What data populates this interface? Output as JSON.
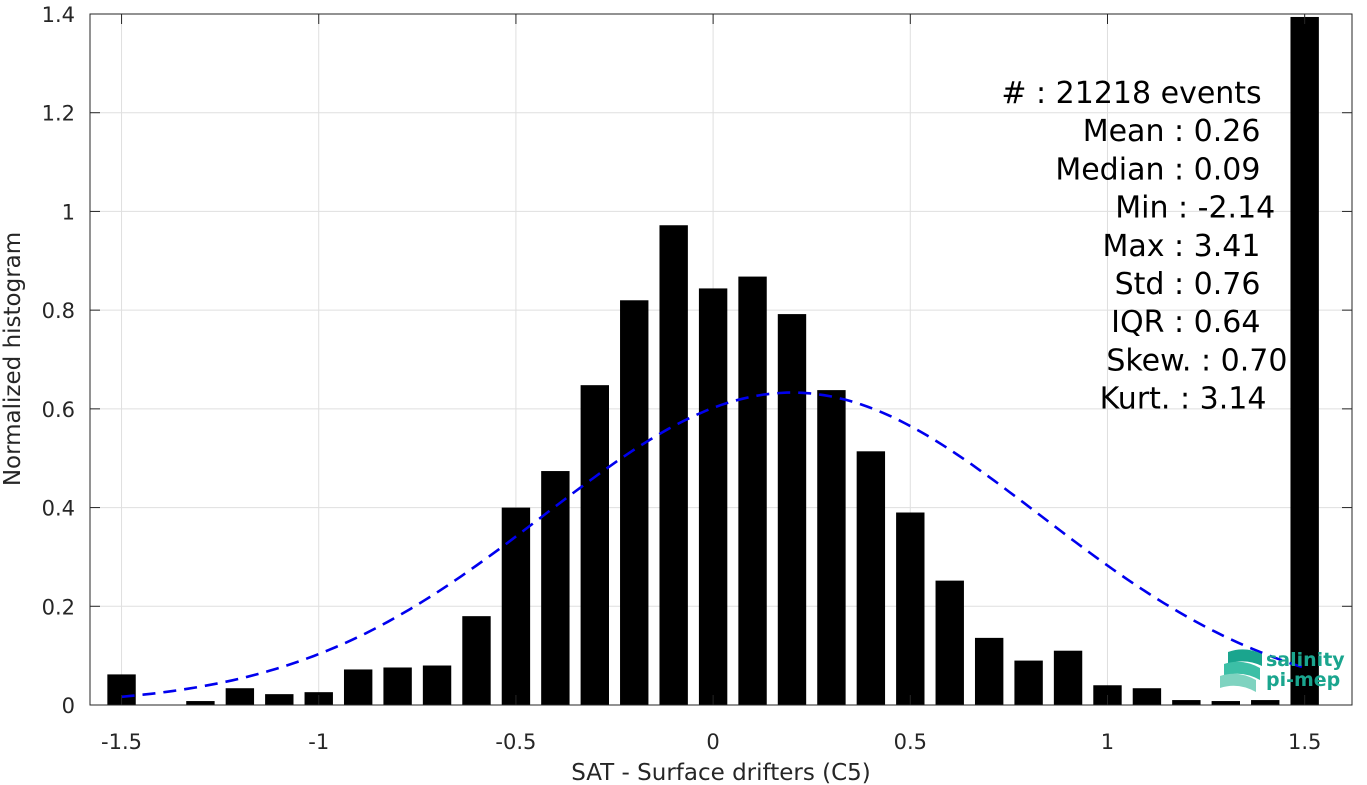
{
  "chart_data": {
    "type": "bar",
    "xlabel": "SAT - Surface drifters (C5)",
    "ylabel": "Normalized histogram",
    "xlim": [
      -1.58,
      1.62
    ],
    "ylim": [
      0,
      1.4
    ],
    "grid": true,
    "bar_color": "#000000",
    "x_ticks": [
      -1.5,
      -1,
      -0.5,
      0,
      0.5,
      1,
      1.5
    ],
    "x_tick_labels": [
      "-1.5",
      "-1",
      "-0.5",
      "0",
      "0.5",
      "1",
      "1.5"
    ],
    "y_ticks": [
      0,
      0.2,
      0.4,
      0.6,
      0.8,
      1,
      1.2,
      1.4
    ],
    "y_tick_labels": [
      "0",
      "0.2",
      "0.4",
      "0.6",
      "0.8",
      "1",
      "1.2",
      "1.4"
    ],
    "bins": [
      -1.5,
      -1.4,
      -1.3,
      -1.2,
      -1.1,
      -1.0,
      -0.9,
      -0.8,
      -0.7,
      -0.6,
      -0.5,
      -0.4,
      -0.3,
      -0.2,
      -0.1,
      0.0,
      0.1,
      0.2,
      0.3,
      0.4,
      0.5,
      0.6,
      0.7,
      0.8,
      0.9,
      1.0,
      1.1,
      1.2,
      1.3,
      1.4,
      1.5
    ],
    "values": [
      0.062,
      0.0,
      0.008,
      0.034,
      0.022,
      0.026,
      0.072,
      0.076,
      0.08,
      0.18,
      0.4,
      0.474,
      0.648,
      0.82,
      0.972,
      0.844,
      0.868,
      0.792,
      0.638,
      0.514,
      0.39,
      0.252,
      0.136,
      0.09,
      0.11,
      0.04,
      0.034,
      0.01,
      0.008,
      0.01,
      1.394
    ],
    "fit_curve": {
      "style": "dashed",
      "color": "#0000ee",
      "mean": 0.2,
      "std": 0.63,
      "peak": 0.633,
      "x_range": [
        -1.5,
        1.5
      ]
    },
    "stats": [
      {
        "label": "#  ",
        "value": ": 21218 events"
      },
      {
        "label": "Mean ",
        "value": ": 0.26"
      },
      {
        "label": "Median ",
        "value": ": 0.09"
      },
      {
        "label": "Min ",
        "value": ": -2.14"
      },
      {
        "label": "Max ",
        "value": ": 3.41"
      },
      {
        "label": "Std ",
        "value": ": 0.76"
      },
      {
        "label": "IQR ",
        "value": ": 0.64"
      },
      {
        "label": "Skew. ",
        "value": ": 0.70"
      },
      {
        "label": "Kurt. ",
        "value": ": 3.14"
      }
    ]
  },
  "logo": {
    "line1": "salinity",
    "line2": "pi-mep",
    "color": "#1aa58e"
  }
}
